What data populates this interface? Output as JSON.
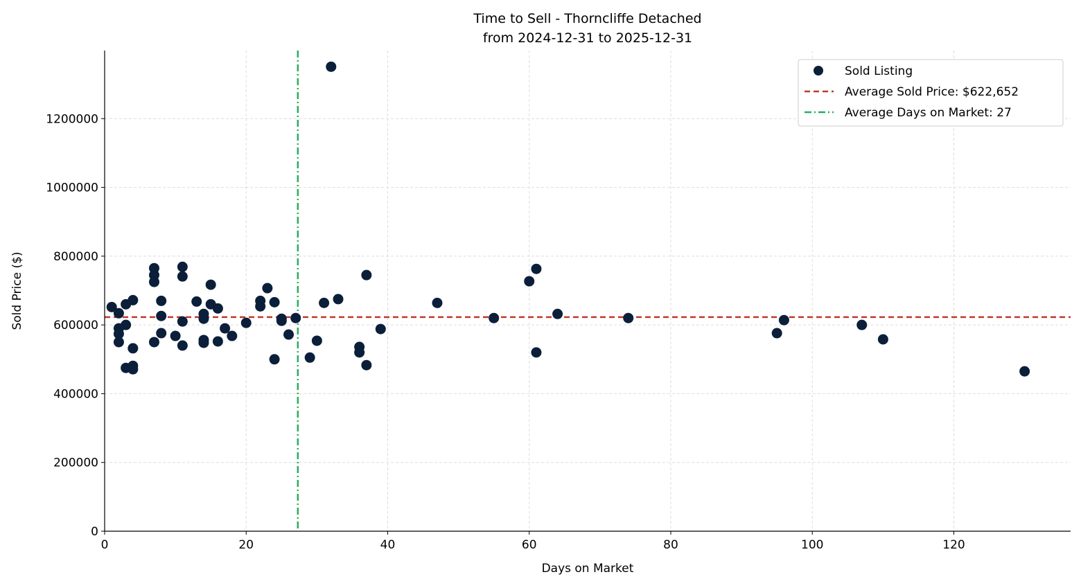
{
  "chart_data": {
    "type": "scatter",
    "title": "Time to Sell - Thorncliffe Detached",
    "subtitle": "from 2024-12-31 to 2025-12-31",
    "xlabel": "Days on Market",
    "ylabel": "Sold Price ($)",
    "xlim": [
      0,
      136.5
    ],
    "ylim": [
      0,
      1398000
    ],
    "xticks": [
      0,
      20,
      40,
      60,
      80,
      100,
      120
    ],
    "yticks": [
      0,
      200000,
      400000,
      600000,
      800000,
      1000000,
      1200000
    ],
    "grid": true,
    "legend_position": "top-right",
    "colors": {
      "points": "#0b1f3a",
      "avg_price": "#c0392b",
      "avg_days": "#27ae60"
    },
    "legend": [
      "Sold Listing",
      "Average Sold Price: $622,652",
      "Average Days on Market: 27"
    ],
    "avg_price": 622652,
    "avg_days": 27.3,
    "points": [
      [
        1,
        652000
      ],
      [
        2,
        634000
      ],
      [
        2,
        590000
      ],
      [
        2,
        574000
      ],
      [
        2,
        550000
      ],
      [
        3,
        660000
      ],
      [
        3,
        600000
      ],
      [
        3,
        475000
      ],
      [
        4,
        672000
      ],
      [
        4,
        532000
      ],
      [
        4,
        481000
      ],
      [
        4,
        471000
      ],
      [
        7,
        765000
      ],
      [
        7,
        745000
      ],
      [
        7,
        725000
      ],
      [
        7,
        550000
      ],
      [
        8,
        670000
      ],
      [
        8,
        626000
      ],
      [
        8,
        576000
      ],
      [
        10,
        568000
      ],
      [
        11,
        769000
      ],
      [
        11,
        741000
      ],
      [
        11,
        610000
      ],
      [
        11,
        540000
      ],
      [
        13,
        668000
      ],
      [
        14,
        632000
      ],
      [
        14,
        618000
      ],
      [
        14,
        556000
      ],
      [
        14,
        548000
      ],
      [
        15,
        717000
      ],
      [
        15,
        660000
      ],
      [
        16,
        648000
      ],
      [
        16,
        552000
      ],
      [
        17,
        590000
      ],
      [
        18,
        568000
      ],
      [
        20,
        606000
      ],
      [
        22,
        670000
      ],
      [
        22,
        654000
      ],
      [
        23,
        707000
      ],
      [
        24,
        666000
      ],
      [
        24,
        500000
      ],
      [
        25,
        618000
      ],
      [
        25,
        612000
      ],
      [
        26,
        572000
      ],
      [
        27,
        620000
      ],
      [
        29,
        505000
      ],
      [
        30,
        554000
      ],
      [
        31,
        664000
      ],
      [
        32,
        1351000
      ],
      [
        33,
        675000
      ],
      [
        36,
        536000
      ],
      [
        36,
        520000
      ],
      [
        37,
        745000
      ],
      [
        37,
        483000
      ],
      [
        39,
        588000
      ],
      [
        47,
        664000
      ],
      [
        55,
        620000
      ],
      [
        60,
        727000
      ],
      [
        61,
        763000
      ],
      [
        61,
        520000
      ],
      [
        64,
        632000
      ],
      [
        74,
        620000
      ],
      [
        95,
        576000
      ],
      [
        96,
        614000
      ],
      [
        107,
        600000
      ],
      [
        110,
        558000
      ],
      [
        130,
        465000
      ]
    ]
  }
}
